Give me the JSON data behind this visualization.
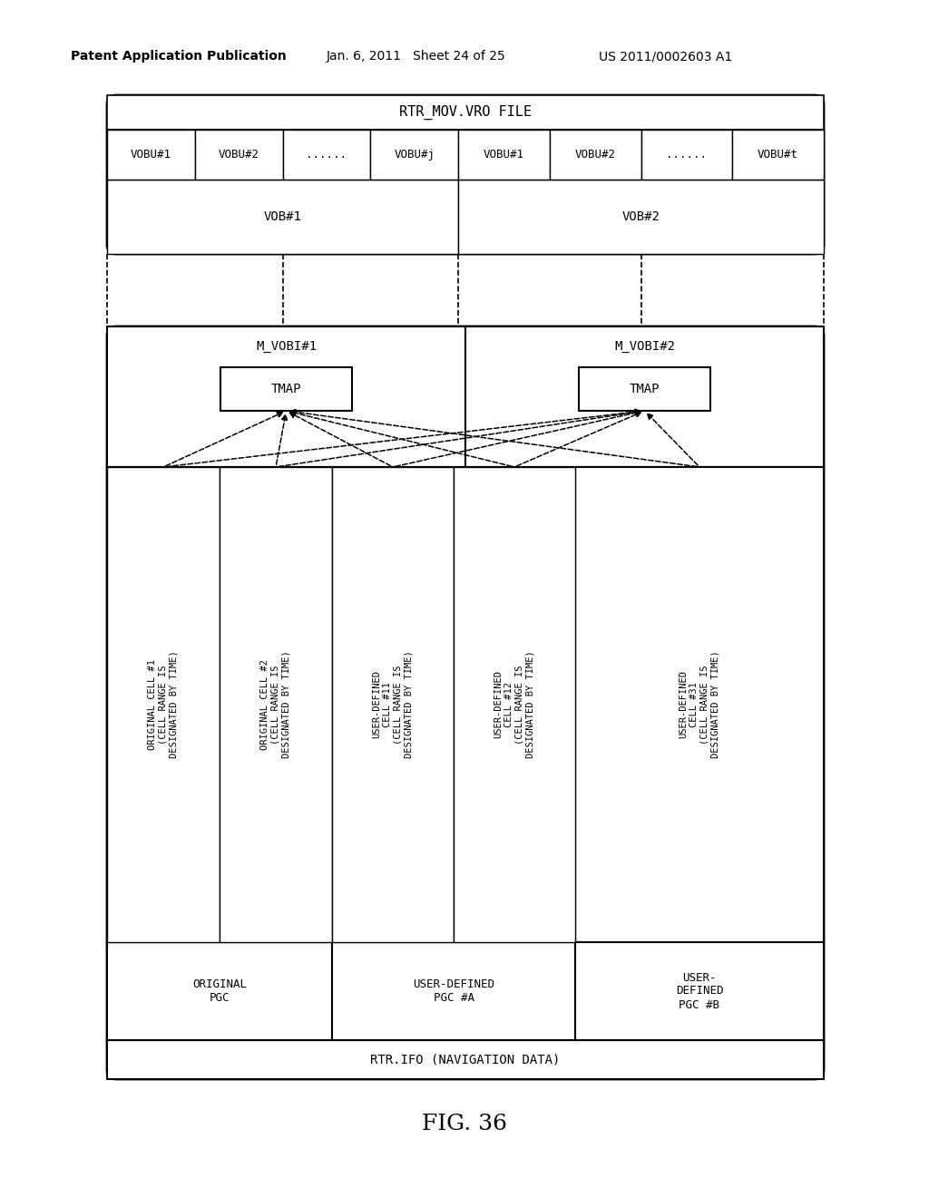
{
  "bg_color": "#ffffff",
  "header": {
    "left": "Patent Application Publication",
    "mid": "Jan. 6, 2011   Sheet 24 of 25",
    "right": "US 2011/0002603 A1"
  },
  "fig_label": "FIG. 36",
  "top_box": {
    "title": "RTR_MOV.VRO FILE",
    "vob1_cells": [
      "VOBU#1",
      "VOBU#2",
      "......",
      "VOBU#j"
    ],
    "vob2_cells": [
      "VOBU#1",
      "VOBU#2",
      "......",
      "VOBU#t"
    ],
    "vob1_label": "VOB#1",
    "vob2_label": "VOB#2"
  },
  "bottom_box": {
    "mvobi1": "M_VOBI#1",
    "mvobi2": "M_VOBI#2",
    "tmap1": "TMAP",
    "tmap2": "TMAP",
    "cell1a": "ORIGINAL CELL #1\n(CELL RANGE IS\nDESIGNATED BY TIME)",
    "cell1b": "ORIGINAL CELL #2\n(CELL RANGE IS\nDESIGNATED BY TIME)",
    "cell2a": "USER-DEFINED\nCELL #11\n(CELL RANGE IS\nDESIGNATED BY TIME)",
    "cell2b": "USER-DEFINED\nCELL #12\n(CELL RANGE IS\nDESIGNATED BY TIME)",
    "cell3a": "USER-DEFINED\nCELL #31\n(CELL RANGE IS\nDESIGNATED BY TIME)",
    "pgc1": "ORIGINAL\nPGC",
    "pgc2": "USER-DEFINED\nPGC #A",
    "pgc3": "USER-\nDEFINED\nPGC #B",
    "nav": "RTR.IFO (NAVIGATION DATA)"
  }
}
